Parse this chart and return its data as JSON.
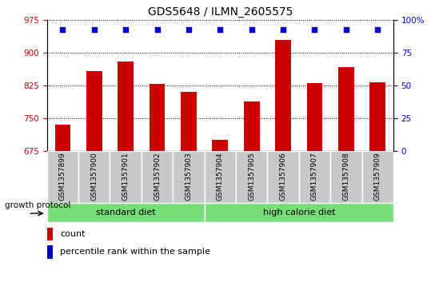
{
  "title": "GDS5648 / ILMN_2605575",
  "samples": [
    "GSM1357899",
    "GSM1357900",
    "GSM1357901",
    "GSM1357902",
    "GSM1357903",
    "GSM1357904",
    "GSM1357905",
    "GSM1357906",
    "GSM1357907",
    "GSM1357908",
    "GSM1357909"
  ],
  "counts": [
    735,
    858,
    880,
    828,
    810,
    700,
    788,
    930,
    830,
    868,
    832
  ],
  "percentile_val": 93,
  "ylim_left": [
    675,
    975
  ],
  "ylim_right": [
    0,
    100
  ],
  "yticks_left": [
    675,
    750,
    825,
    900,
    975
  ],
  "yticks_right": [
    0,
    25,
    50,
    75,
    100
  ],
  "ytick_right_labels": [
    "0",
    "25",
    "50",
    "75",
    "100%"
  ],
  "bar_color": "#CC0000",
  "dot_color": "#0000CC",
  "bar_width": 0.5,
  "groups": [
    {
      "label": "standard diet",
      "start": 0,
      "end": 4
    },
    {
      "label": "high calorie diet",
      "start": 5,
      "end": 10
    }
  ],
  "group_color": "#77DD77",
  "group_label_prefix": "growth protocol",
  "tick_color_left": "#CC0000",
  "tick_color_right": "#0000CC",
  "legend_items": [
    {
      "label": "count",
      "color": "#CC0000"
    },
    {
      "label": "percentile rank within the sample",
      "color": "#0000CC"
    }
  ],
  "xticklabel_bg": "#C8C8C8"
}
